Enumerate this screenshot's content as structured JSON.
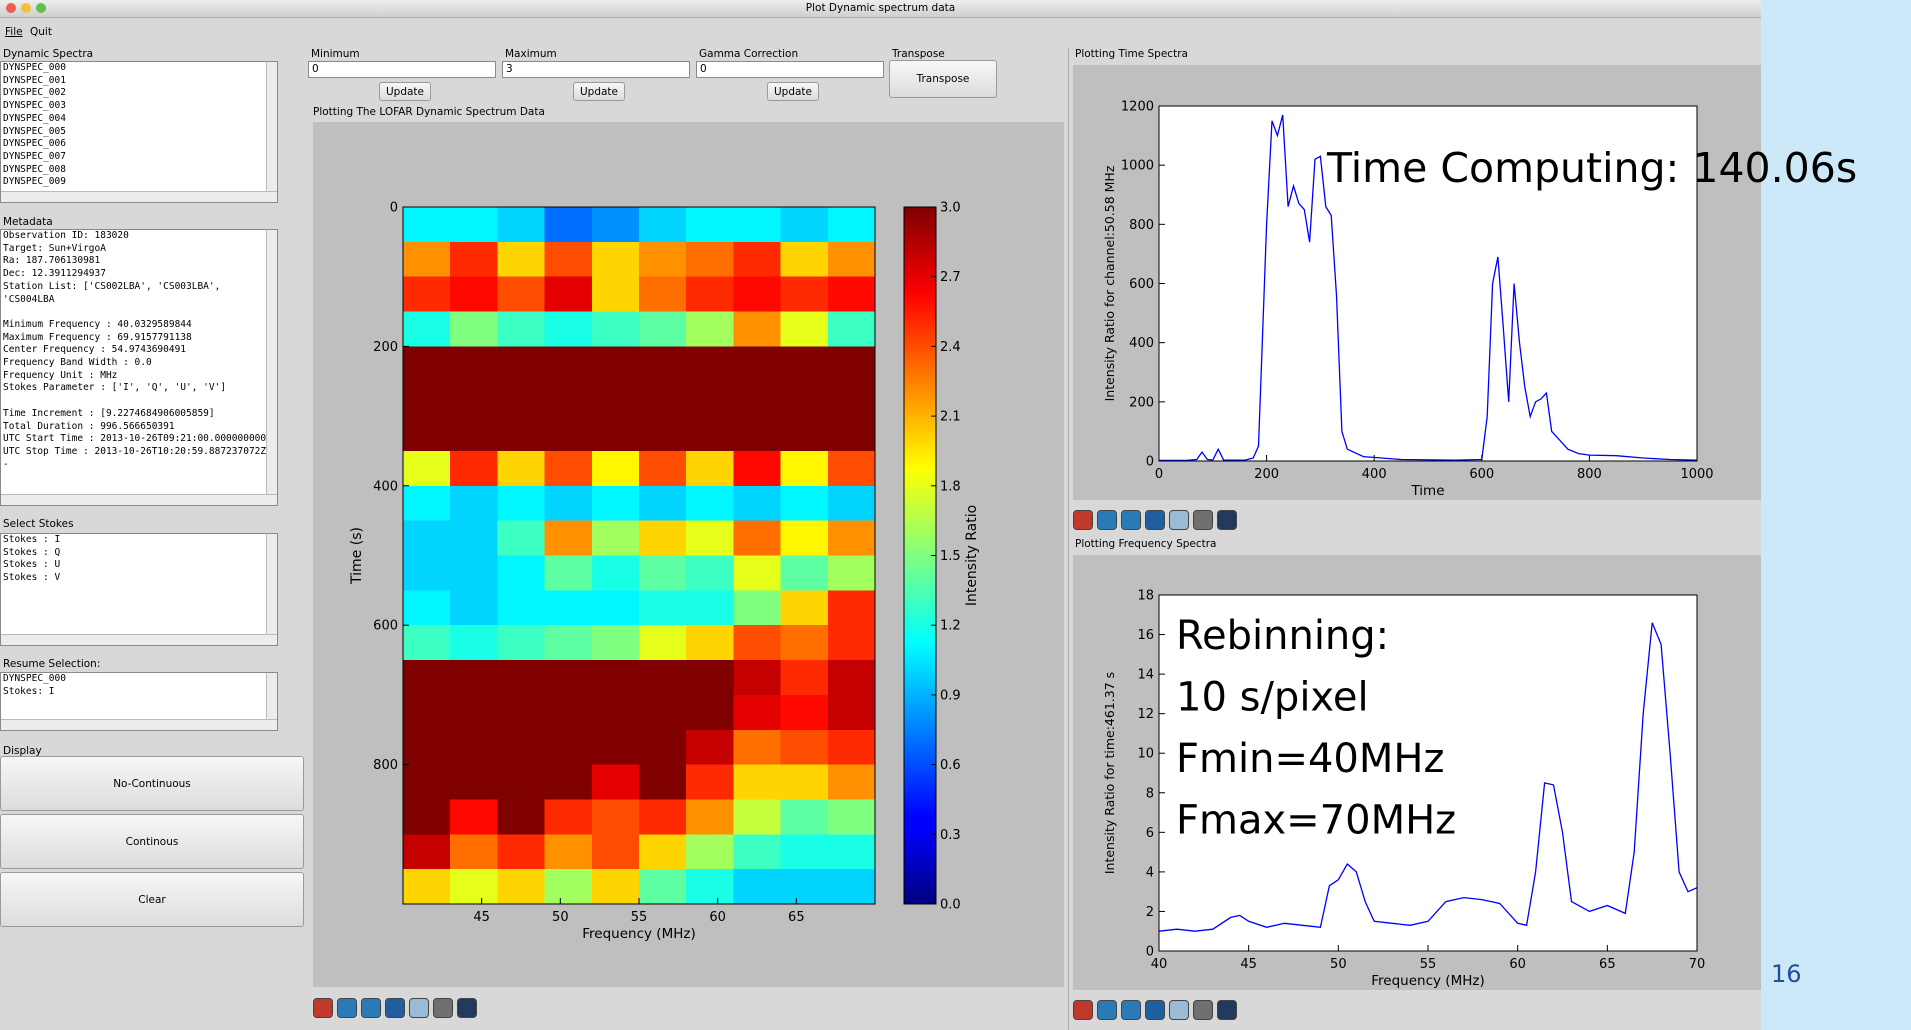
{
  "window_title": "Plot Dynamic spectrum data",
  "menu": [
    "File",
    "Quit"
  ],
  "dynamic_spectra": {
    "label": "Dynamic Spectra",
    "items": [
      "DYNSPEC_000",
      "DYNSPEC_001",
      "DYNSPEC_002",
      "DYNSPEC_003",
      "DYNSPEC_004",
      "DYNSPEC_005",
      "DYNSPEC_006",
      "DYNSPEC_007",
      "DYNSPEC_008",
      "DYNSPEC_009"
    ]
  },
  "metadata": {
    "label": "Metadata",
    "blocks": [
      [
        "Observation ID: 183020",
        "Target: Sun+VirgoA",
        "Ra: 187.706130981",
        "Dec: 12.3911294937",
        "Station List: ['CS002LBA', 'CS003LBA', 'CS004LBA"
      ],
      [
        "Minimum Frequency : 40.0329589844",
        "Maximum Frequency : 69.9157791138",
        "Center Frequency : 54.9743690491",
        "Frequency Band Width : 0.0",
        "Frequency Unit : MHz",
        "Stokes Parameter : ['I', 'Q', 'U', 'V']"
      ],
      [
        "Time Increment : [9.2274684906005859]",
        "Total Duration : 996.566650391",
        "UTC Start Time : 2013-10-26T09:21:00.000000000Z",
        "UTC Stop Time : 2013-10-26T10:20:59.887237072Z -"
      ]
    ]
  },
  "select_stokes": {
    "label": "Select Stokes",
    "items": [
      "Stokes : I",
      "Stokes : Q",
      "Stokes : U",
      "Stokes : V"
    ]
  },
  "resume_selection": {
    "label": "Resume Selection:",
    "lines": [
      "DYNSPEC_000",
      "Stokes: I"
    ]
  },
  "display": {
    "label": "Display",
    "buttons": [
      "No-Continuous",
      "Continous",
      "Clear"
    ]
  },
  "controls": [
    {
      "label": "Minimum",
      "value": "0",
      "button": "Update"
    },
    {
      "label": "Maximum",
      "value": "3",
      "button": "Update"
    },
    {
      "label": "Gamma Correction",
      "value": "0",
      "button": "Update"
    }
  ],
  "transpose": {
    "label": "Transpose",
    "button": "Transpose"
  },
  "panels": {
    "dynamic": "Plotting The LOFAR Dynamic Spectrum Data",
    "time": "Plotting Time Spectra",
    "frequency": "Plotting Frequency Spectra"
  },
  "slide_number": "16",
  "chart_data": [
    {
      "type": "heatmap",
      "xlabel": "Frequency (MHz)",
      "ylabel": "Time (s)",
      "xlim": [
        40,
        70
      ],
      "ylim": [
        1000,
        0
      ],
      "xticks": [
        45,
        50,
        55,
        60,
        65
      ],
      "yticks": [
        0,
        200,
        400,
        600,
        800
      ],
      "xbins": [
        40,
        43,
        46,
        49,
        52,
        55,
        58,
        61,
        64,
        67,
        70
      ],
      "ybins": [
        0,
        50,
        100,
        150,
        200,
        250,
        300,
        350,
        400,
        450,
        500,
        550,
        600,
        650,
        700,
        750,
        800,
        850,
        900,
        950,
        1000
      ],
      "z": [
        [
          1.1,
          1.1,
          1.0,
          0.7,
          0.8,
          1.0,
          1.1,
          1.1,
          1.0,
          1.1
        ],
        [
          2.2,
          2.5,
          2.0,
          2.4,
          2.0,
          2.2,
          2.3,
          2.5,
          2.0,
          2.2
        ],
        [
          2.5,
          2.6,
          2.4,
          2.7,
          2.0,
          2.3,
          2.5,
          2.6,
          2.5,
          2.6
        ],
        [
          1.2,
          1.5,
          1.3,
          1.2,
          1.3,
          1.4,
          1.6,
          2.2,
          1.8,
          1.3
        ],
        [
          3.0,
          3.0,
          3.0,
          3.0,
          3.0,
          3.0,
          3.0,
          3.0,
          3.0,
          3.0
        ],
        [
          3.0,
          3.0,
          3.0,
          3.0,
          3.0,
          3.0,
          3.0,
          3.0,
          3.0,
          3.0
        ],
        [
          3.0,
          3.0,
          3.0,
          3.0,
          3.0,
          3.0,
          3.0,
          3.0,
          3.0,
          3.0
        ],
        [
          1.8,
          2.5,
          2.0,
          2.4,
          1.9,
          2.4,
          2.0,
          2.6,
          1.9,
          2.4
        ],
        [
          1.1,
          1.0,
          1.1,
          1.0,
          1.1,
          1.0,
          1.1,
          1.0,
          1.1,
          1.0
        ],
        [
          1.0,
          1.0,
          1.3,
          2.2,
          1.6,
          2.0,
          1.8,
          2.3,
          1.9,
          2.2
        ],
        [
          1.0,
          1.0,
          1.1,
          1.4,
          1.2,
          1.4,
          1.3,
          1.8,
          1.4,
          1.6
        ],
        [
          1.1,
          1.0,
          1.1,
          1.1,
          1.1,
          1.2,
          1.2,
          1.5,
          2.0,
          2.5
        ],
        [
          1.3,
          1.2,
          1.3,
          1.4,
          1.5,
          1.8,
          2.0,
          2.4,
          2.3,
          2.5
        ],
        [
          3.0,
          3.0,
          3.0,
          3.0,
          3.0,
          3.0,
          3.0,
          2.8,
          2.5,
          2.8
        ],
        [
          3.0,
          3.0,
          3.0,
          3.0,
          3.0,
          3.0,
          3.0,
          2.7,
          2.6,
          2.8
        ],
        [
          3.0,
          3.0,
          3.0,
          3.0,
          3.0,
          3.0,
          2.8,
          2.3,
          2.4,
          2.5
        ],
        [
          3.0,
          3.0,
          3.0,
          3.0,
          2.7,
          3.0,
          2.5,
          2.0,
          2.0,
          2.2
        ],
        [
          3.0,
          2.6,
          3.0,
          2.5,
          2.4,
          2.5,
          2.2,
          1.7,
          1.4,
          1.5
        ],
        [
          2.8,
          2.3,
          2.5,
          2.2,
          2.4,
          2.0,
          1.6,
          1.3,
          1.2,
          1.2
        ],
        [
          2.0,
          1.8,
          2.0,
          1.6,
          2.0,
          1.4,
          1.2,
          1.0,
          1.0,
          1.0
        ]
      ],
      "colormap": "jet",
      "clim": [
        0,
        3
      ],
      "cticks": [
        {
          "value": 0,
          "label": "0.0"
        },
        0.3,
        0.6,
        0.9,
        1.2,
        1.5,
        1.8,
        2.1,
        2.4,
        2.7,
        {
          "value": 3,
          "label": "3.0"
        }
      ],
      "colorbar_label": "Intensity Ratio"
    },
    {
      "type": "line",
      "xlabel": "Time",
      "ylabel": "Intensity Ratio for channel:50.58 MHz",
      "xlim": [
        0,
        1000
      ],
      "ylim": [
        0,
        1200
      ],
      "xticks": [
        0,
        200,
        400,
        600,
        800,
        1000
      ],
      "yticks": [
        0,
        200,
        400,
        600,
        800,
        1000,
        1200
      ],
      "x": [
        0,
        50,
        70,
        80,
        90,
        100,
        110,
        120,
        160,
        175,
        185,
        190,
        200,
        210,
        220,
        230,
        240,
        250,
        260,
        270,
        280,
        290,
        300,
        310,
        320,
        330,
        340,
        350,
        380,
        450,
        550,
        600,
        610,
        620,
        630,
        640,
        650,
        660,
        670,
        680,
        690,
        700,
        710,
        720,
        730,
        740,
        760,
        780,
        800,
        850,
        900,
        950,
        1000
      ],
      "values": [
        2,
        2,
        5,
        30,
        5,
        3,
        40,
        3,
        3,
        10,
        50,
        300,
        800,
        1150,
        1100,
        1170,
        860,
        930,
        870,
        850,
        740,
        1020,
        1030,
        860,
        830,
        560,
        100,
        40,
        15,
        5,
        3,
        5,
        150,
        600,
        690,
        450,
        200,
        600,
        400,
        250,
        150,
        200,
        210,
        230,
        100,
        80,
        40,
        25,
        20,
        18,
        10,
        5,
        3
      ],
      "color": "#0000ff",
      "annotation": "Time Computing: 140.06s"
    },
    {
      "type": "line",
      "xlabel": "Frequency (MHz)",
      "ylabel": "Intensity Ratio for time:461.37 s",
      "xlim": [
        40,
        70
      ],
      "ylim": [
        0,
        18
      ],
      "xticks": [
        40,
        45,
        50,
        55,
        60,
        65,
        70
      ],
      "yticks": [
        0,
        2,
        4,
        6,
        8,
        10,
        12,
        14,
        16,
        18
      ],
      "x": [
        40,
        41,
        42,
        43,
        44,
        44.5,
        45,
        46,
        47,
        48,
        49,
        49.5,
        50,
        50.5,
        51,
        51.5,
        52,
        53,
        54,
        55,
        56,
        57,
        58,
        59,
        60,
        60.5,
        61,
        61.5,
        62,
        62.5,
        63,
        64,
        65,
        66,
        66.5,
        67,
        67.5,
        68,
        68.5,
        69,
        69.5,
        70
      ],
      "values": [
        1.0,
        1.1,
        1.0,
        1.1,
        1.7,
        1.8,
        1.5,
        1.2,
        1.4,
        1.3,
        1.2,
        3.3,
        3.6,
        4.4,
        4.0,
        2.5,
        1.5,
        1.4,
        1.3,
        1.5,
        2.5,
        2.7,
        2.6,
        2.4,
        1.4,
        1.3,
        4.0,
        8.5,
        8.4,
        6.0,
        2.5,
        2.0,
        2.3,
        1.9,
        5.0,
        12.0,
        16.6,
        15.5,
        10.0,
        4.0,
        3.0,
        3.2
      ],
      "color": "#0000ff",
      "annotation": [
        "Rebinning:",
        "10 s/pixel",
        "Fmin=40MHz",
        "Fmax=70MHz"
      ]
    }
  ]
}
